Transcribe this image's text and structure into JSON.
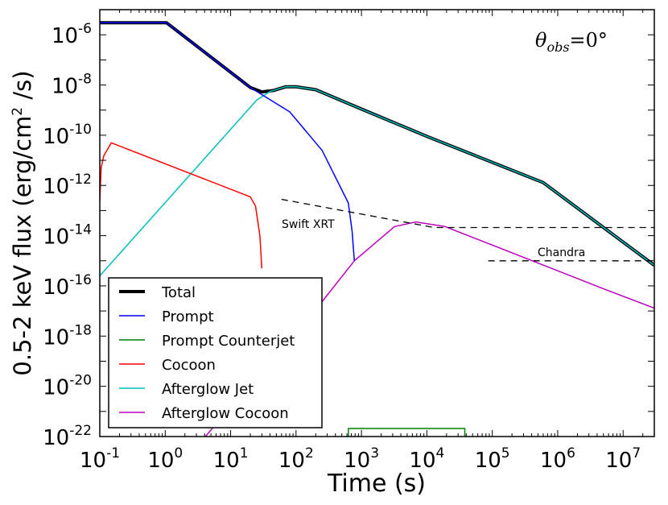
{
  "chart_data": {
    "type": "line",
    "xlabel": "Time (s)",
    "ylabel": "0.5-2 keV flux (erg/cm² /s)",
    "ylabel_parts": {
      "pre": "0.5-2 keV flux (erg/cm",
      "sup": "2",
      "post": " /s)"
    },
    "xscale": "log",
    "yscale": "log",
    "xlim": [
      0.1,
      30000000
    ],
    "ylim": [
      1e-22,
      1e-05
    ],
    "grid": false,
    "legend_placement": "lower-left",
    "x_ticks": [
      {
        "base": "10",
        "exp": "-1"
      },
      {
        "base": "10",
        "exp": "0"
      },
      {
        "base": "10",
        "exp": "1"
      },
      {
        "base": "10",
        "exp": "2"
      },
      {
        "base": "10",
        "exp": "3"
      },
      {
        "base": "10",
        "exp": "4"
      },
      {
        "base": "10",
        "exp": "5"
      },
      {
        "base": "10",
        "exp": "6"
      },
      {
        "base": "10",
        "exp": "7"
      }
    ],
    "y_ticks": [
      {
        "base": "10",
        "exp": "-6"
      },
      {
        "base": "10",
        "exp": "-8"
      },
      {
        "base": "10",
        "exp": "-10"
      },
      {
        "base": "10",
        "exp": "-12"
      },
      {
        "base": "10",
        "exp": "-14"
      },
      {
        "base": "10",
        "exp": "-16"
      },
      {
        "base": "10",
        "exp": "-18"
      },
      {
        "base": "10",
        "exp": "-20"
      },
      {
        "base": "10",
        "exp": "-22"
      }
    ],
    "annotation": {
      "symbol": "θ",
      "sub": "obs",
      "rest": "=0°"
    },
    "series": [
      {
        "name": "Total",
        "color": "#000000",
        "thick": true,
        "points": [
          [
            0.1,
            3e-06
          ],
          [
            1.05,
            3e-06
          ],
          [
            20,
            8e-09
          ],
          [
            30,
            5.3e-09
          ],
          [
            45,
            6e-09
          ],
          [
            70,
            8.5e-09
          ],
          [
            100,
            8.5e-09
          ],
          [
            200,
            6.5e-09
          ],
          [
            1000,
            1.1e-09
          ],
          [
            10000,
            9e-11
          ],
          [
            600000,
            1.3e-12
          ],
          [
            30000000,
            6.6e-16
          ]
        ]
      },
      {
        "name": "Prompt",
        "color": "#0000ff",
        "points": [
          [
            0.1,
            3e-06
          ],
          [
            1.05,
            3e-06
          ],
          [
            20,
            8e-09
          ],
          [
            80,
            8.5e-10
          ],
          [
            250,
            2.5e-11
          ],
          [
            630,
            2e-13
          ],
          [
            720,
            1.5e-14
          ],
          [
            780,
            1e-15
          ]
        ]
      },
      {
        "name": "Prompt Counterjet",
        "color": "#008000",
        "points": [
          [
            630,
            1e-22
          ],
          [
            630,
            2.1e-22
          ],
          [
            38000,
            2.1e-22
          ],
          [
            38000,
            1e-22
          ]
        ]
      },
      {
        "name": "Cocoon",
        "color": "#ff0000",
        "points": [
          [
            0.1,
            2.5e-13
          ],
          [
            0.105,
            5e-12
          ],
          [
            0.115,
            1.5e-11
          ],
          [
            0.15,
            5e-11
          ],
          [
            20,
            3.5e-13
          ],
          [
            24,
            1.5e-13
          ],
          [
            28,
            1e-14
          ],
          [
            30,
            5e-16
          ]
        ]
      },
      {
        "name": "Afterglow Jet",
        "color": "#00bfbf",
        "points": [
          [
            0.1,
            2.5e-16
          ],
          [
            25,
            2.5e-09
          ],
          [
            40,
            5.5e-09
          ],
          [
            70,
            8.5e-09
          ],
          [
            100,
            8.5e-09
          ],
          [
            200,
            6.5e-09
          ],
          [
            1000,
            1.1e-09
          ],
          [
            10000,
            9e-11
          ],
          [
            600000,
            1.3e-12
          ],
          [
            30000000,
            6.6e-16
          ]
        ]
      },
      {
        "name": "Afterglow Cocoon",
        "color": "#bf00bf",
        "points": [
          [
            4.1,
            1e-22
          ],
          [
            245,
            2.2e-17
          ],
          [
            780,
            1e-15
          ],
          [
            3200,
            2.3e-14
          ],
          [
            6800,
            3.5e-14
          ],
          [
            19000,
            2.3e-14
          ],
          [
            5500000,
            7e-17
          ],
          [
            30000000,
            1.3e-17
          ]
        ]
      }
    ],
    "reference_lines": [
      {
        "label": "Swift XRT",
        "points": [
          [
            60,
            2.8e-13
          ],
          [
            13000,
            2.1e-14
          ],
          [
            30000000,
            2.1e-14
          ]
        ]
      },
      {
        "label": "Chandra",
        "points": [
          [
            87000,
            1e-15
          ],
          [
            30000000,
            1e-15
          ]
        ]
      }
    ]
  }
}
